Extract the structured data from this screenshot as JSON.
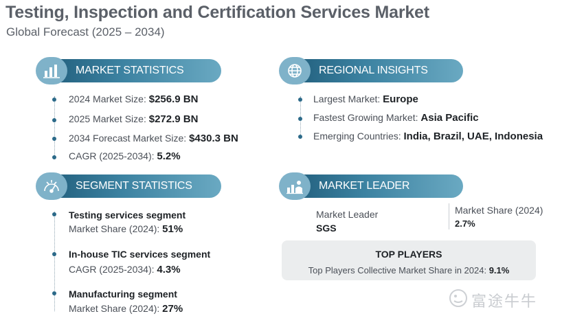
{
  "header": {
    "title": "Testing, Inspection and Certification Services Market",
    "subtitle": "Global Forecast (2025 – 2034)"
  },
  "market_statistics": {
    "heading": "MARKET STATISTICS",
    "icon": "chart-icon",
    "rows": [
      {
        "label": "2024 Market Size: ",
        "value": "$256.9 BN"
      },
      {
        "label": "2025 Market Size: ",
        "value": "$272.9 BN"
      },
      {
        "label": "2034 Forecast Market Size: ",
        "value": "$430.3 BN"
      },
      {
        "label": "CAGR (2025-2034): ",
        "value": "5.2%"
      }
    ]
  },
  "regional_insights": {
    "heading": "REGIONAL INSIGHTS",
    "icon": "globe-icon",
    "rows": [
      {
        "label": "Largest Market: ",
        "value": "Europe"
      },
      {
        "label": "Fastest Growing Market: ",
        "value": "Asia Pacific"
      },
      {
        "label": "Emerging Countries: ",
        "value": "India, Brazil, UAE, Indonesia"
      }
    ]
  },
  "segment_statistics": {
    "heading": "SEGMENT STATISTICS",
    "icon": "gauge-icon",
    "items": [
      {
        "name": "Testing services segment",
        "label": "Market Share (2024): ",
        "value": "51%"
      },
      {
        "name": "In-house TIC services segment",
        "label": "CAGR (2025-2034): ",
        "value": "4.3%"
      },
      {
        "name": "Manufacturing segment",
        "label": "Market Share (2024): ",
        "value": "27%"
      }
    ]
  },
  "market_leader": {
    "heading": "MARKET LEADER",
    "icon": "leader-chart-icon",
    "leader_label": "Market Leader",
    "leader_value": "SGS",
    "share_label": "Market Share (2024)",
    "share_value": "2.7%",
    "top_players": {
      "title": "TOP PLAYERS",
      "label": "Top Players Collective Market Share in 2024: ",
      "value": "9.1%"
    }
  },
  "watermark": {
    "text": "富途牛牛",
    "icon": "futu-logo-icon"
  },
  "colors": {
    "accent_dark": "#1e5a78",
    "accent_light": "#6aa9c2",
    "badge": "#7fb2c9",
    "box_bg": "#ebedee"
  }
}
